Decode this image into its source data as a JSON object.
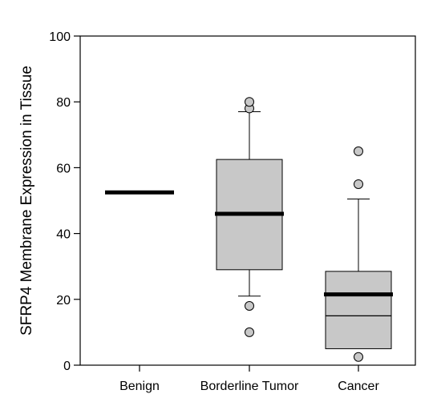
{
  "chart_data": {
    "type": "box",
    "title": "",
    "xlabel": "",
    "ylabel": "SFRP4 Membrane Expression in Tissue",
    "ylim": [
      0,
      100
    ],
    "yticks": [
      0,
      20,
      40,
      60,
      80,
      100
    ],
    "categories": [
      "Benign",
      "Borderline Tumor",
      "Cancer"
    ],
    "grid": false,
    "legend": "none",
    "colors": {
      "box_fill": "#c8c8c8",
      "outlier_fill": "#c8c8c8",
      "mean_line": "#000000"
    },
    "series": [
      {
        "category": "Benign",
        "whisker_low": null,
        "q1": null,
        "median": null,
        "q3": null,
        "whisker_high": null,
        "mean": 52.5,
        "outliers": []
      },
      {
        "category": "Borderline Tumor",
        "whisker_low": 21,
        "q1": 29,
        "median": 46,
        "q3": 62.5,
        "whisker_high": 77,
        "mean": 46,
        "outliers": [
          10,
          18,
          78,
          80
        ]
      },
      {
        "category": "Cancer",
        "whisker_low": 5,
        "q1": 5,
        "median": 15,
        "q3": 28.5,
        "whisker_high": 50.5,
        "mean": 21.5,
        "outliers": [
          2.5,
          55,
          65
        ]
      }
    ]
  }
}
